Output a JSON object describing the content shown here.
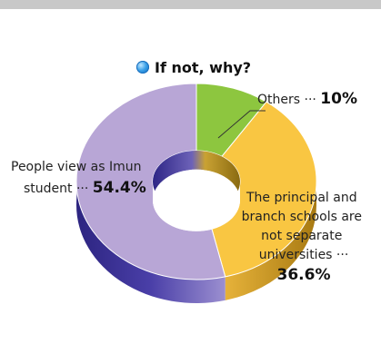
{
  "chart_data": {
    "type": "pie",
    "subtype": "donut-3d",
    "title": "If not, why?",
    "categories": [
      "Others",
      "The principal and branch schools are not separate universities",
      "People view as Imun student"
    ],
    "values": [
      10,
      36.6,
      54.4
    ],
    "unit": "%",
    "labels": {
      "others": {
        "lines": [
          "Others ··· "
        ],
        "value": "10%"
      },
      "principal": {
        "lines": [
          "The principal and",
          "branch schools are",
          "not separate",
          "universities ···"
        ],
        "value": "36.6%"
      },
      "people": {
        "lines": [
          "People view as Imun",
          "student ··· "
        ],
        "value": "54.4%"
      }
    },
    "colors": [
      "#8dc63f",
      "#f9c642",
      "#b8a6d6"
    ],
    "side_colors": [
      "#5c8a1f",
      "#c9961a",
      "#3e3596"
    ]
  }
}
